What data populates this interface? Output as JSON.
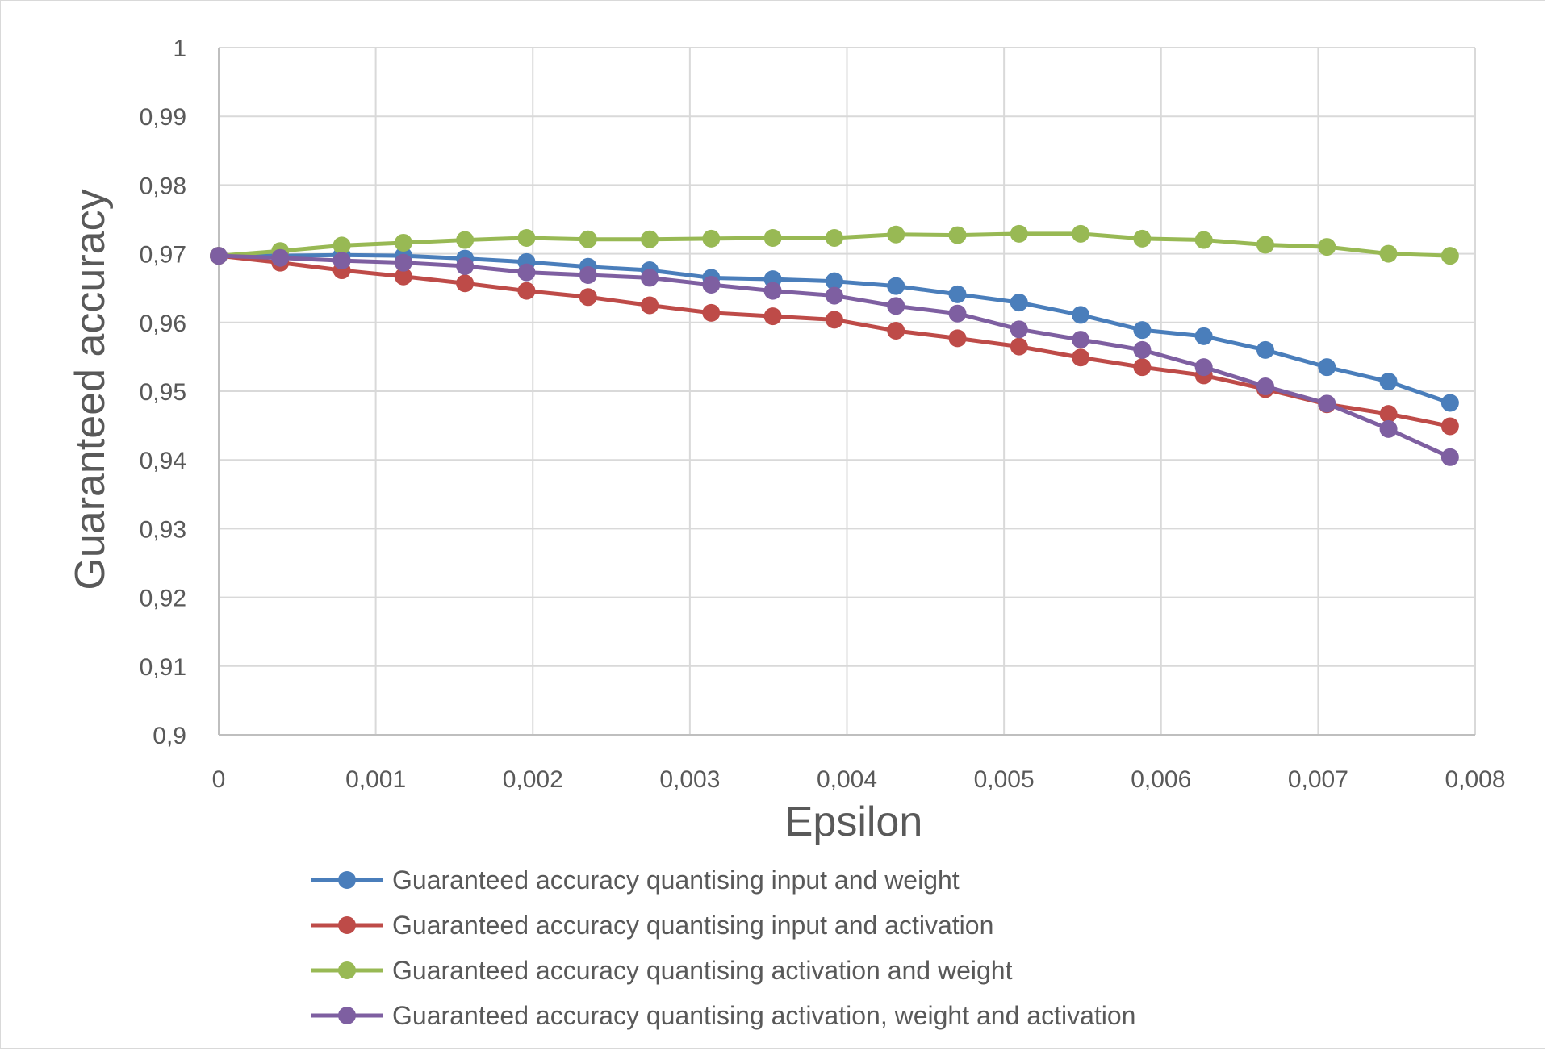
{
  "chart_data": {
    "type": "line",
    "title": "",
    "xlabel": "Epsilon",
    "ylabel": "Guaranteed accuracy",
    "xlim": [
      0,
      0.008
    ],
    "ylim": [
      0.9,
      1.0
    ],
    "x_ticks": [
      0,
      0.001,
      0.002,
      0.003,
      0.004,
      0.005,
      0.006,
      0.007,
      0.008
    ],
    "x_tick_labels": [
      "0",
      "0,001",
      "0,002",
      "0,003",
      "0,004",
      "0,005",
      "0,006",
      "0,007",
      "0,008"
    ],
    "y_ticks": [
      0.9,
      0.91,
      0.92,
      0.93,
      0.94,
      0.95,
      0.96,
      0.97,
      0.98,
      0.99,
      1.0
    ],
    "y_tick_labels": [
      "0,9",
      "0,91",
      "0,92",
      "0,93",
      "0,94",
      "0,95",
      "0,96",
      "0,97",
      "0,98",
      "0,99",
      "1"
    ],
    "grid": true,
    "legend_position": "bottom",
    "x": [
      0,
      0.000392,
      0.000784,
      0.001176,
      0.001568,
      0.00196,
      0.002352,
      0.002744,
      0.003136,
      0.003528,
      0.00392,
      0.004312,
      0.004704,
      0.005096,
      0.005488,
      0.00588,
      0.006272,
      0.006664,
      0.007056,
      0.007448,
      0.00784
    ],
    "series": [
      {
        "name": "Guaranteed accuracy quantising input and weight",
        "color": "#4a7ebb",
        "values": [
          0.9697,
          0.9697,
          0.9698,
          0.9697,
          0.9693,
          0.9688,
          0.9681,
          0.9676,
          0.9665,
          0.9663,
          0.966,
          0.9653,
          0.9641,
          0.9629,
          0.9611,
          0.9589,
          0.958,
          0.956,
          0.9535,
          0.9514,
          0.9483
        ]
      },
      {
        "name": "Guaranteed accuracy quantising input and activation",
        "color": "#be4b48",
        "values": [
          0.9697,
          0.9687,
          0.9676,
          0.9667,
          0.9657,
          0.9646,
          0.9637,
          0.9625,
          0.9614,
          0.9609,
          0.9604,
          0.9588,
          0.9577,
          0.9565,
          0.9549,
          0.9535,
          0.9523,
          0.9503,
          0.9481,
          0.9467,
          0.9449
        ]
      },
      {
        "name": "Guaranteed accuracy quantising activation and weight",
        "color": "#98b954",
        "values": [
          0.9697,
          0.9704,
          0.9712,
          0.9716,
          0.972,
          0.9723,
          0.9721,
          0.9721,
          0.9722,
          0.9723,
          0.9723,
          0.9728,
          0.9727,
          0.9729,
          0.9729,
          0.9722,
          0.972,
          0.9713,
          0.971,
          0.97,
          0.9697
        ]
      },
      {
        "name": "Guaranteed accuracy quantising activation, weight and activation",
        "color": "#7e5fa1",
        "values": [
          0.9697,
          0.9694,
          0.969,
          0.9687,
          0.9682,
          0.9673,
          0.9669,
          0.9665,
          0.9655,
          0.9646,
          0.9639,
          0.9624,
          0.9613,
          0.959,
          0.9575,
          0.956,
          0.9535,
          0.9507,
          0.9482,
          0.9445,
          0.9404
        ]
      }
    ]
  }
}
